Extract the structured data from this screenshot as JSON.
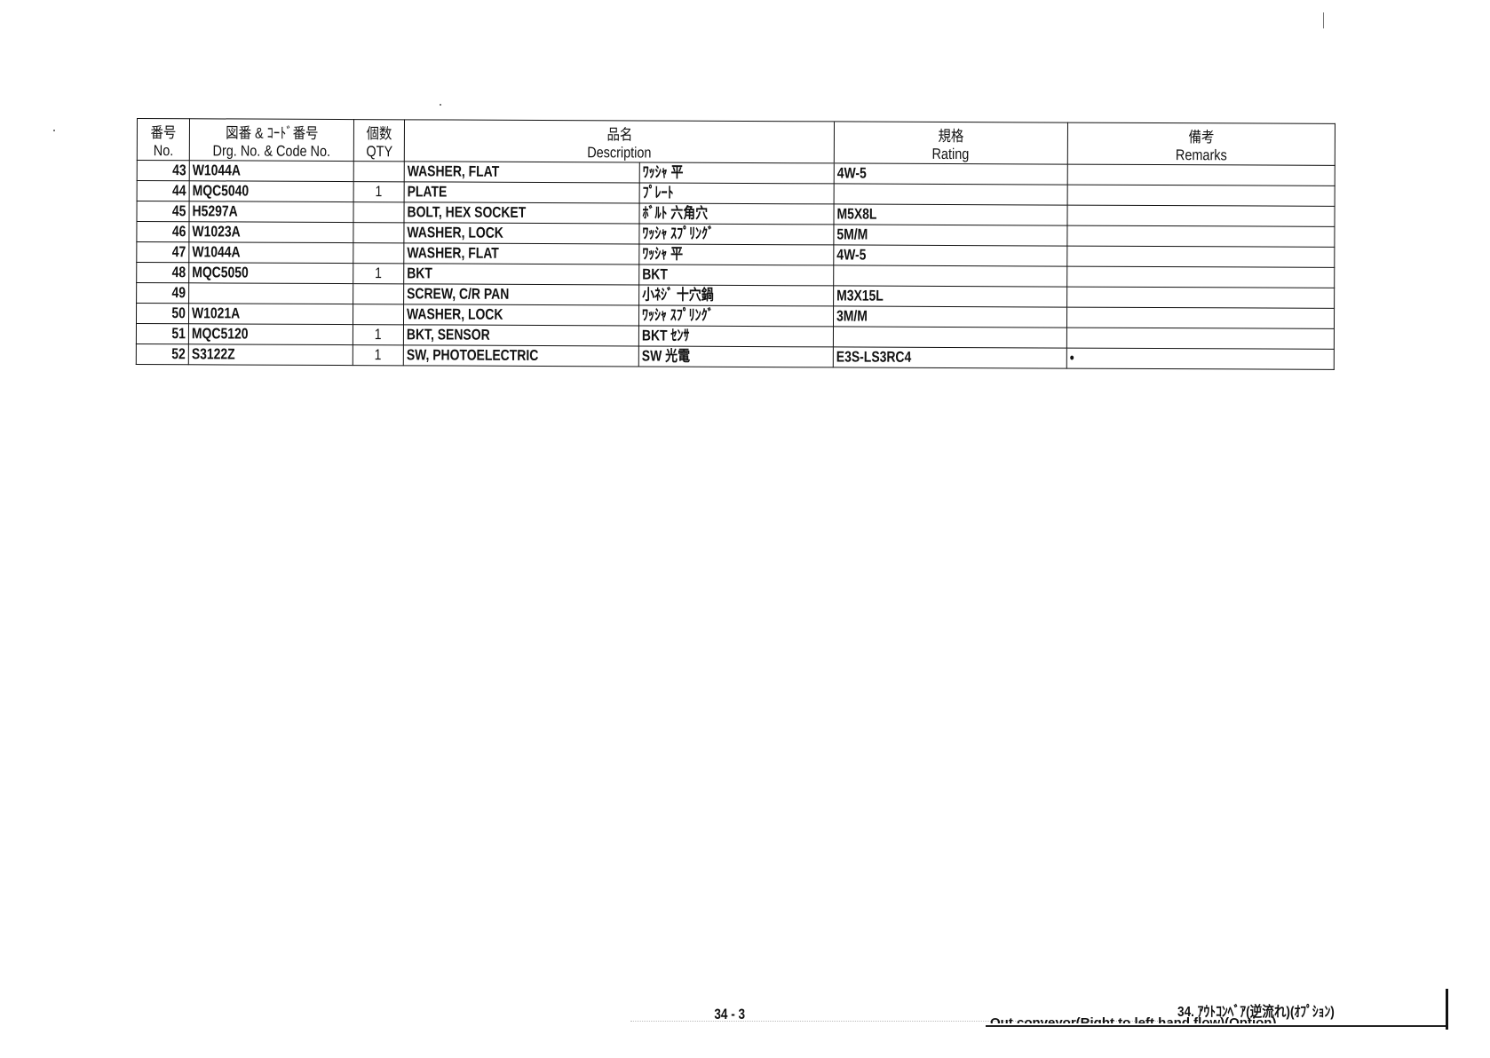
{
  "table": {
    "headers": {
      "no_jp": "番号",
      "no_en": "No.",
      "code_jp": "図番 & ｺｰﾄﾞ番号",
      "code_en": "Drg. No. & Code No.",
      "qty_jp": "個数",
      "qty_en": "QTY",
      "desc_jp": "品名",
      "desc_en": "Description",
      "rating_jp": "規格",
      "rating_en": "Rating",
      "remarks_jp": "備考",
      "remarks_en": "Remarks"
    },
    "rows": [
      {
        "no": "43",
        "code": "W1044A",
        "qty": "",
        "desc_en": "WASHER, FLAT",
        "desc_jp": "ﾜｯｼｬ 平",
        "rating": "4W-5",
        "remarks": ""
      },
      {
        "no": "44",
        "code": "MQC5040",
        "qty": "1",
        "desc_en": "PLATE",
        "desc_jp": "ﾌﾟﾚｰﾄ",
        "rating": "",
        "remarks": ""
      },
      {
        "no": "45",
        "code": "H5297A",
        "qty": "",
        "desc_en": "BOLT, HEX SOCKET",
        "desc_jp": "ﾎﾞﾙﾄ 六角穴",
        "rating": "M5X8L",
        "remarks": ""
      },
      {
        "no": "46",
        "code": "W1023A",
        "qty": "",
        "desc_en": "WASHER, LOCK",
        "desc_jp": "ﾜｯｼｬ ｽﾌﾟﾘﾝｸﾞ",
        "rating": "5M/M",
        "remarks": ""
      },
      {
        "no": "47",
        "code": "W1044A",
        "qty": "",
        "desc_en": "WASHER, FLAT",
        "desc_jp": "ﾜｯｼｬ 平",
        "rating": "4W-5",
        "remarks": ""
      },
      {
        "no": "48",
        "code": "MQC5050",
        "qty": "1",
        "desc_en": "BKT",
        "desc_jp": "BKT",
        "rating": "",
        "remarks": ""
      },
      {
        "no": "49",
        "code": "",
        "qty": "",
        "desc_en": "SCREW, C/R PAN",
        "desc_jp": "小ﾈｼﾞ 十穴鍋",
        "rating": "M3X15L",
        "remarks": ""
      },
      {
        "no": "50",
        "code": "W1021A",
        "qty": "",
        "desc_en": "WASHER, LOCK",
        "desc_jp": "ﾜｯｼｬ ｽﾌﾟﾘﾝｸﾞ",
        "rating": "3M/M",
        "remarks": ""
      },
      {
        "no": "51",
        "code": "MQC5120",
        "qty": "1",
        "desc_en": "BKT, SENSOR",
        "desc_jp": "BKT ｾﾝｻ",
        "rating": "",
        "remarks": ""
      },
      {
        "no": "52",
        "code": "S3122Z",
        "qty": "1",
        "desc_en": "SW, PHOTOELECTRIC",
        "desc_jp": "SW 光電",
        "rating": "E3S-LS3RC4",
        "remarks": "•"
      }
    ]
  },
  "footer": {
    "page_number": "34 - 3",
    "section_title": "34. ｱｳﾄｺﾝﾍﾞｱ(逆流れ)(ｵﾌﾟｼｮﾝ)",
    "section_subtitle": "Out conveyor(Right to left hand flow)(Option)"
  }
}
